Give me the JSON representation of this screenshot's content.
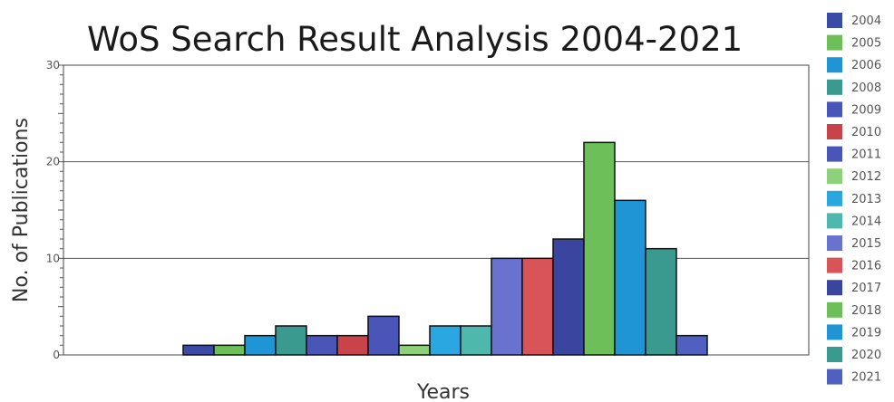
{
  "chart_data": {
    "type": "bar",
    "title": "WoS Search Result Analysis 2004-2021",
    "xlabel": "Years",
    "ylabel": "No. of Publications",
    "ylim": [
      0,
      30
    ],
    "yticks": [
      0,
      10,
      20,
      30
    ],
    "grid": true,
    "legend_position": "right",
    "categories": [
      "2004",
      "2005",
      "2006",
      "2008",
      "2009",
      "2010",
      "2011",
      "2012",
      "2013",
      "2014",
      "2015",
      "2016",
      "2017",
      "2018",
      "2019",
      "2020",
      "2021"
    ],
    "values": [
      1,
      1,
      2,
      3,
      2,
      2,
      4,
      1,
      3,
      3,
      10,
      10,
      12,
      22,
      16,
      11,
      2
    ],
    "colors": [
      "#3a4aa6",
      "#6dbf5a",
      "#1f95d6",
      "#3a9a90",
      "#4a55b8",
      "#c8434a",
      "#4a55b8",
      "#8fd07a",
      "#2aa6e0",
      "#4fb8ae",
      "#6a72d0",
      "#d85458",
      "#3a45a0",
      "#6dbf5a",
      "#1f95d6",
      "#3a9a90",
      "#5060c0"
    ]
  }
}
